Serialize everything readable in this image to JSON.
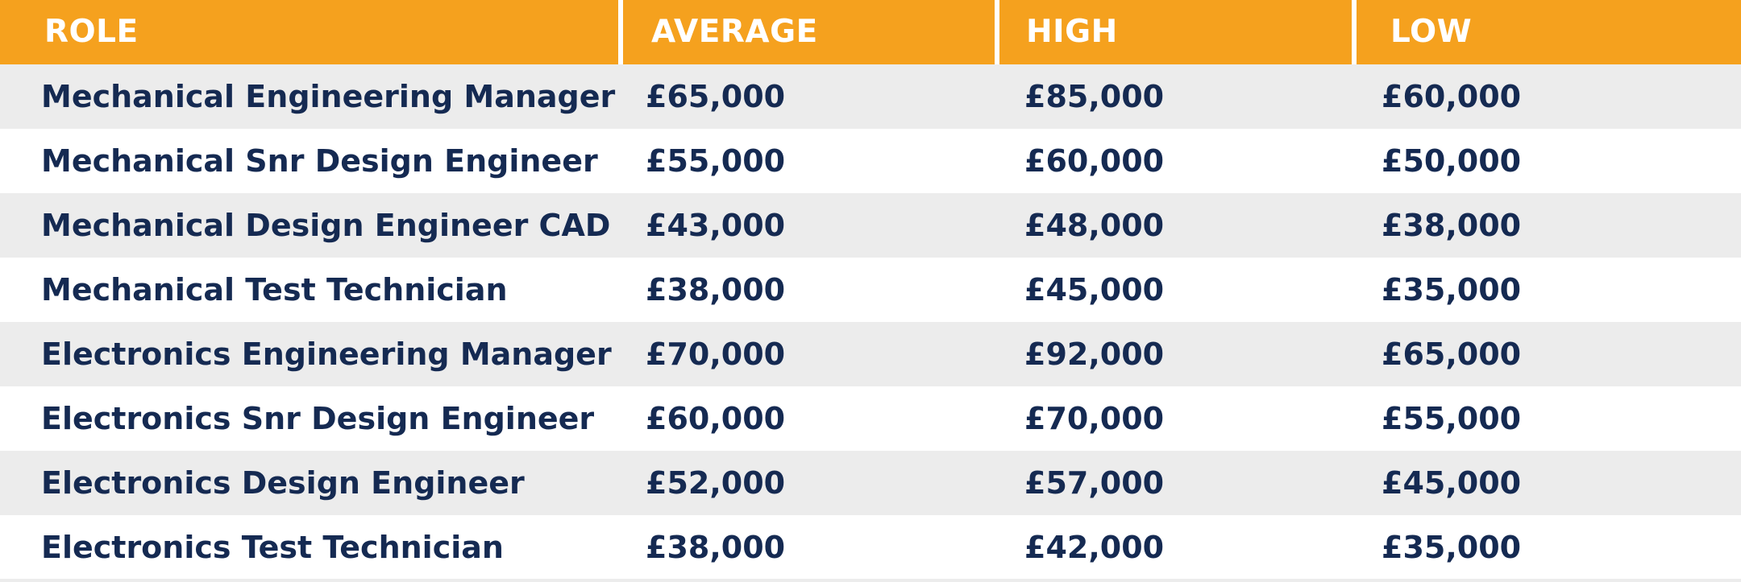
{
  "colors": {
    "header_background": "#f5a11e",
    "header_text": "#ffffff",
    "row_shaded": "#ececec",
    "row_plain": "#ffffff",
    "cell_text": "#152a52"
  },
  "headers": [
    "ROLE",
    "AVERAGE",
    "HIGH",
    "LOW"
  ],
  "rows": [
    {
      "role": "Mechanical Engineering Manager",
      "average": "£65,000",
      "high": "£85,000",
      "low": "£60,000"
    },
    {
      "role": "Mechanical Snr Design Engineer",
      "average": "£55,000",
      "high": "£60,000",
      "low": "£50,000"
    },
    {
      "role": "Mechanical Design Engineer CAD",
      "average": "£43,000",
      "high": "£48,000",
      "low": "£38,000"
    },
    {
      "role": "Mechanical Test Technician",
      "average": "£38,000",
      "high": "£45,000",
      "low": "£35,000"
    },
    {
      "role": "Electronics Engineering Manager",
      "average": "£70,000",
      "high": "£92,000",
      "low": "£65,000"
    },
    {
      "role": "Electronics Snr Design Engineer",
      "average": "£60,000",
      "high": "£70,000",
      "low": "£55,000"
    },
    {
      "role": "Electronics Design Engineer",
      "average": "£52,000",
      "high": "£57,000",
      "low": "£45,000"
    },
    {
      "role": "Electronics Test Technician",
      "average": "£38,000",
      "high": "£42,000",
      "low": "£35,000"
    }
  ]
}
